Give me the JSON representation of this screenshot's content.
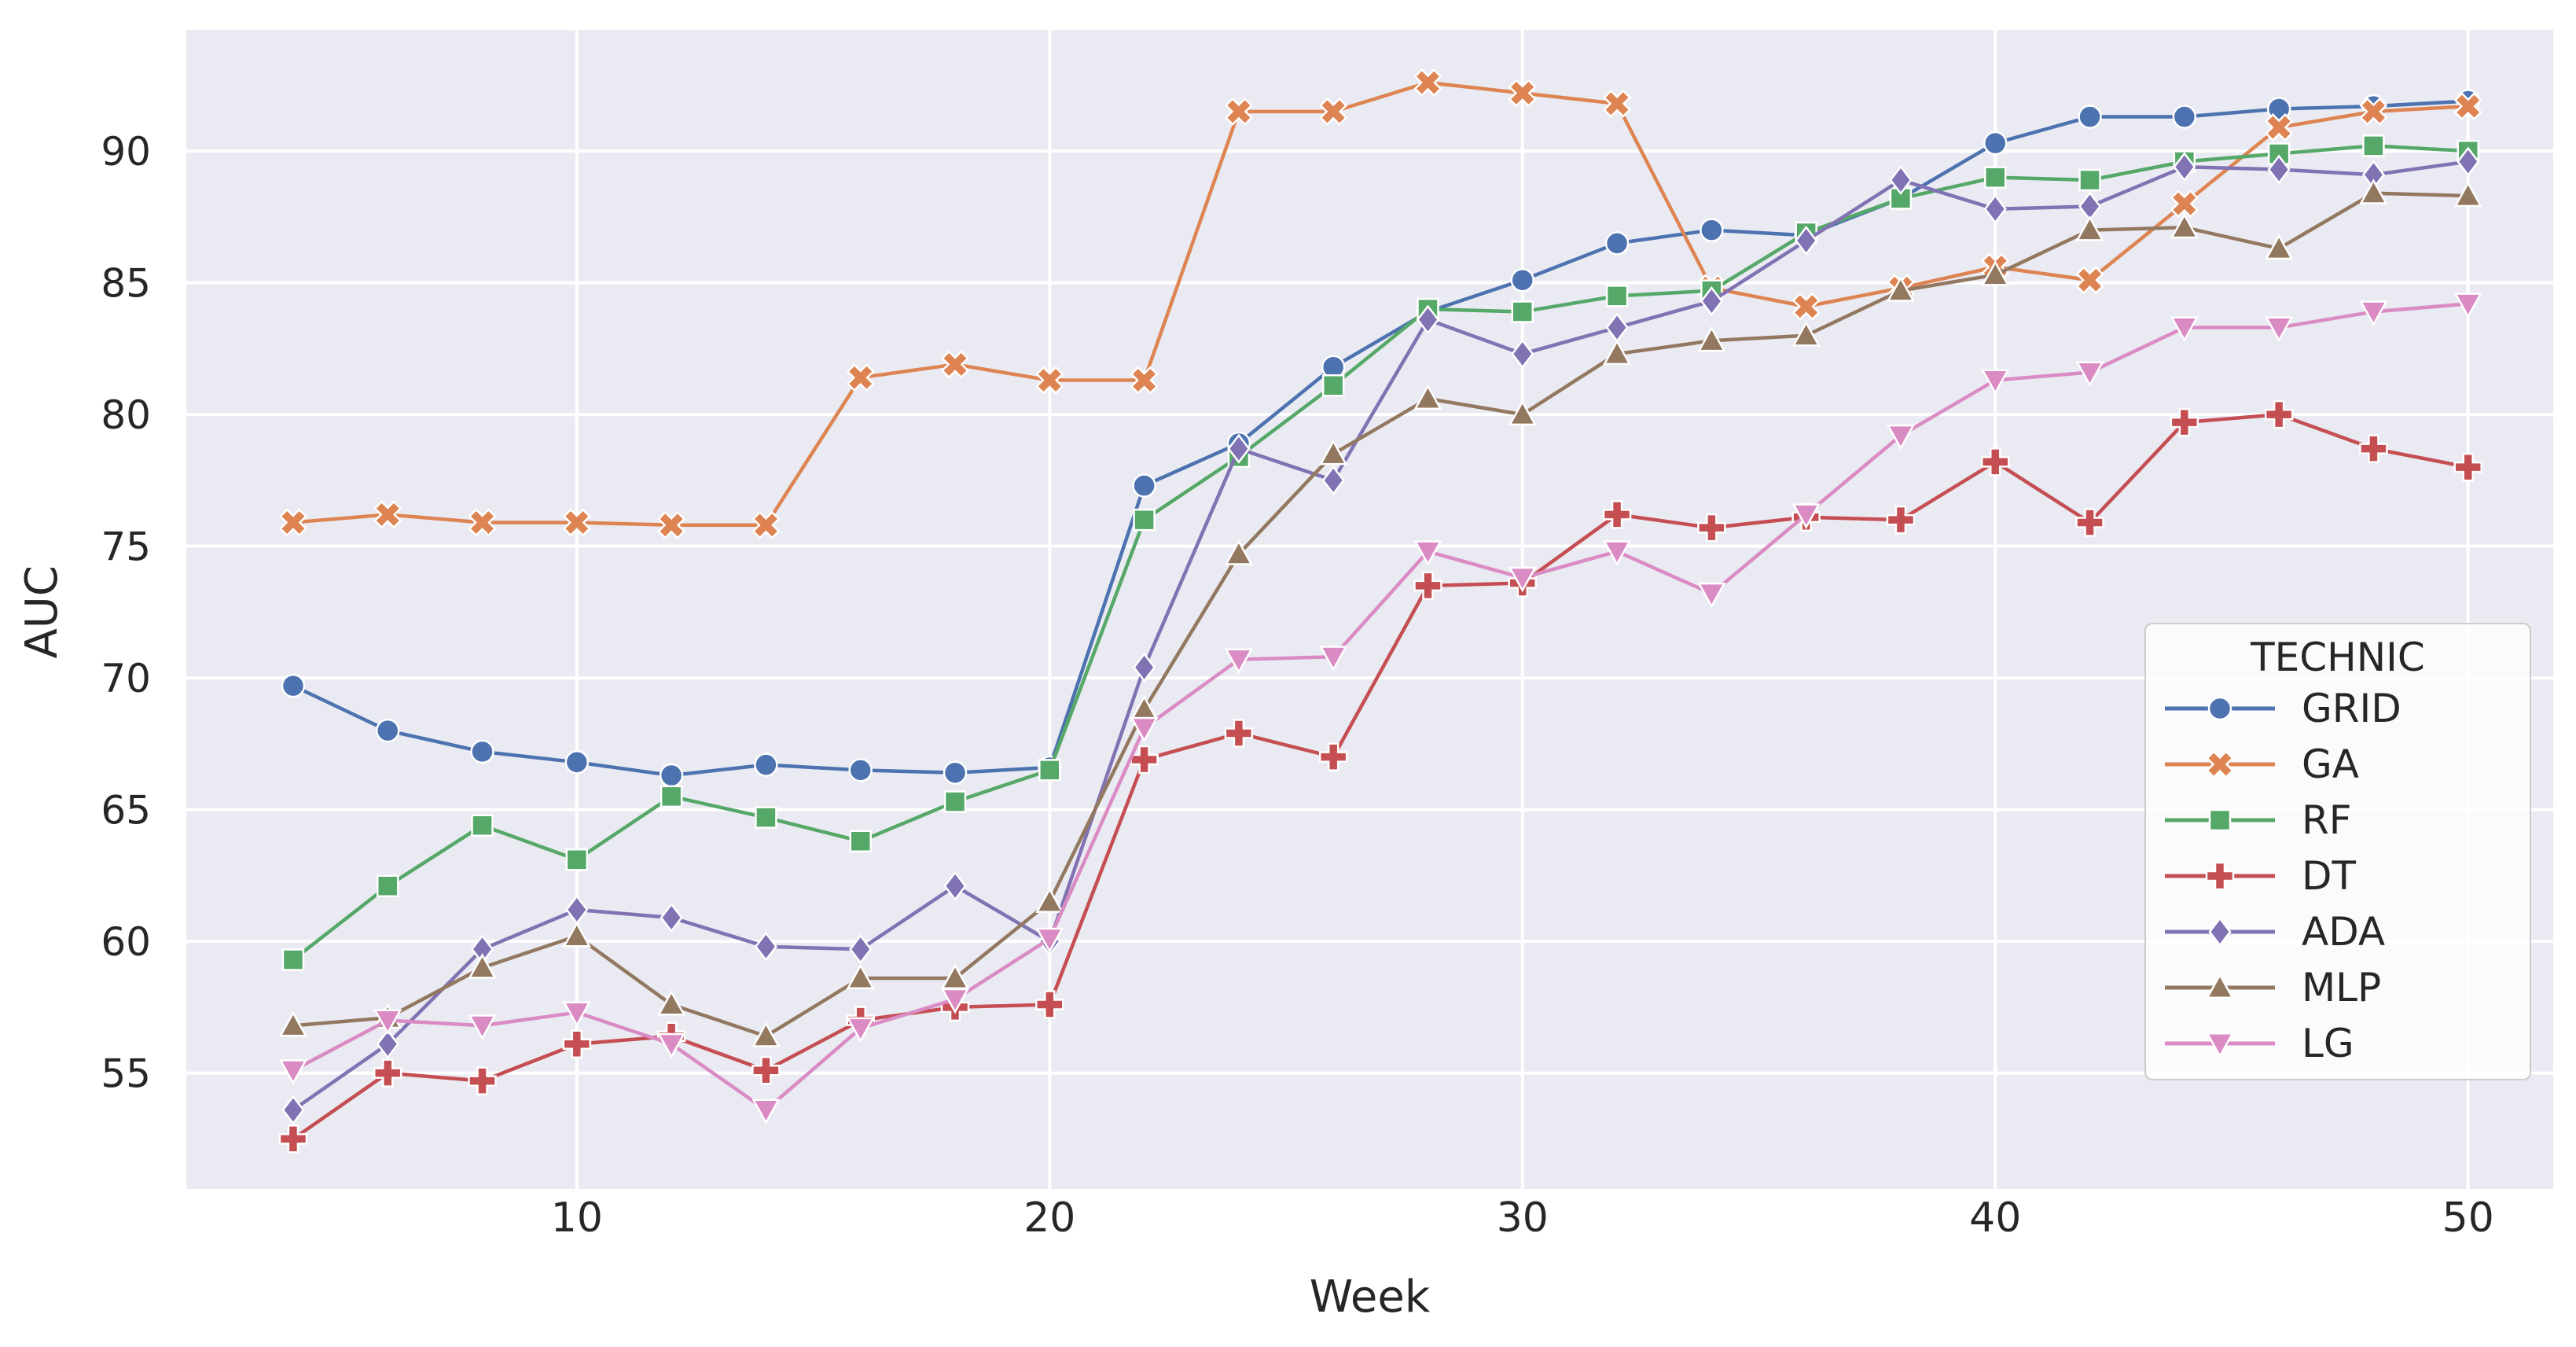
{
  "figure": {
    "xlabel": "Week",
    "ylabel": "AUC"
  },
  "legend": {
    "title": "TECHNIC"
  },
  "chart_data": {
    "type": "line",
    "title": "",
    "xlabel": "Week",
    "ylabel": "AUC",
    "x_ticks": [
      "10",
      "20",
      "30",
      "40",
      "50"
    ],
    "x_tick_values": [
      10,
      20,
      30,
      40,
      50
    ],
    "y_ticks": [
      "55",
      "60",
      "65",
      "70",
      "75",
      "80",
      "85",
      "90"
    ],
    "y_tick_values": [
      55,
      60,
      65,
      70,
      75,
      80,
      85,
      90
    ],
    "xlim": [
      1.74,
      51.8
    ],
    "ylim": [
      50.6,
      94.6
    ],
    "grid": true,
    "legend_title": "TECHNIC",
    "legend_position": "lower right",
    "plot_background": "#EAEAF2",
    "grid_color": "#FFFFFF",
    "tick_color": "#262626",
    "x": [
      4,
      6,
      8,
      10,
      12,
      14,
      16,
      18,
      20,
      22,
      24,
      26,
      28,
      30,
      32,
      34,
      36,
      38,
      40,
      42,
      44,
      46,
      48,
      50
    ],
    "series": [
      {
        "name": "GRID",
        "color": "#4C72B0",
        "marker": "circle",
        "values": [
          69.7,
          68.0,
          67.2,
          66.8,
          66.3,
          66.7,
          66.5,
          66.4,
          66.6,
          77.3,
          78.9,
          81.8,
          83.9,
          85.1,
          86.5,
          87.0,
          86.8,
          88.2,
          90.3,
          91.3,
          91.3,
          91.6,
          91.7,
          91.9
        ]
      },
      {
        "name": "GA",
        "color": "#DD8452",
        "marker": "x",
        "values": [
          75.9,
          76.2,
          75.9,
          75.9,
          75.8,
          75.8,
          81.4,
          81.9,
          81.3,
          81.3,
          91.5,
          91.5,
          92.6,
          92.2,
          91.8,
          84.8,
          84.1,
          84.8,
          85.6,
          85.1,
          88.0,
          90.9,
          91.5,
          91.7
        ]
      },
      {
        "name": "RF",
        "color": "#55A868",
        "marker": "square",
        "values": [
          59.3,
          62.1,
          64.4,
          63.1,
          65.5,
          64.7,
          63.8,
          65.3,
          66.5,
          76.0,
          78.4,
          81.1,
          84.0,
          83.9,
          84.5,
          84.7,
          86.9,
          88.2,
          89.0,
          88.9,
          89.6,
          89.9,
          90.2,
          90.0
        ]
      },
      {
        "name": "DT",
        "color": "#C44E52",
        "marker": "plus",
        "values": [
          52.5,
          55.0,
          54.7,
          56.1,
          56.4,
          55.1,
          57.0,
          57.5,
          57.6,
          66.9,
          67.9,
          67.0,
          73.5,
          73.6,
          76.2,
          75.7,
          76.1,
          76.0,
          78.2,
          75.9,
          79.7,
          80.0,
          78.7,
          78.0
        ]
      },
      {
        "name": "ADA",
        "color": "#8172B3",
        "marker": "diamond",
        "values": [
          53.6,
          56.1,
          59.7,
          61.2,
          60.9,
          59.8,
          59.7,
          62.1,
          60.0,
          70.4,
          78.7,
          77.5,
          83.6,
          82.3,
          83.3,
          84.3,
          86.6,
          88.9,
          87.8,
          87.9,
          89.4,
          89.3,
          89.1,
          89.6
        ]
      },
      {
        "name": "MLP",
        "color": "#937860",
        "marker": "triangle-up",
        "values": [
          56.8,
          57.1,
          59.0,
          60.2,
          57.6,
          56.4,
          58.6,
          58.6,
          61.5,
          68.8,
          74.7,
          78.5,
          80.6,
          80.0,
          82.3,
          82.8,
          83.0,
          84.7,
          85.3,
          87.0,
          87.1,
          86.3,
          88.4,
          88.3
        ]
      },
      {
        "name": "LG",
        "color": "#DA8BC3",
        "marker": "triangle-down",
        "values": [
          55.1,
          57.0,
          56.8,
          57.3,
          56.1,
          53.6,
          56.7,
          57.8,
          60.1,
          68.1,
          70.7,
          70.8,
          74.8,
          73.8,
          74.8,
          73.2,
          76.2,
          79.2,
          81.3,
          81.6,
          83.3,
          83.3,
          83.9,
          84.2
        ]
      }
    ]
  }
}
